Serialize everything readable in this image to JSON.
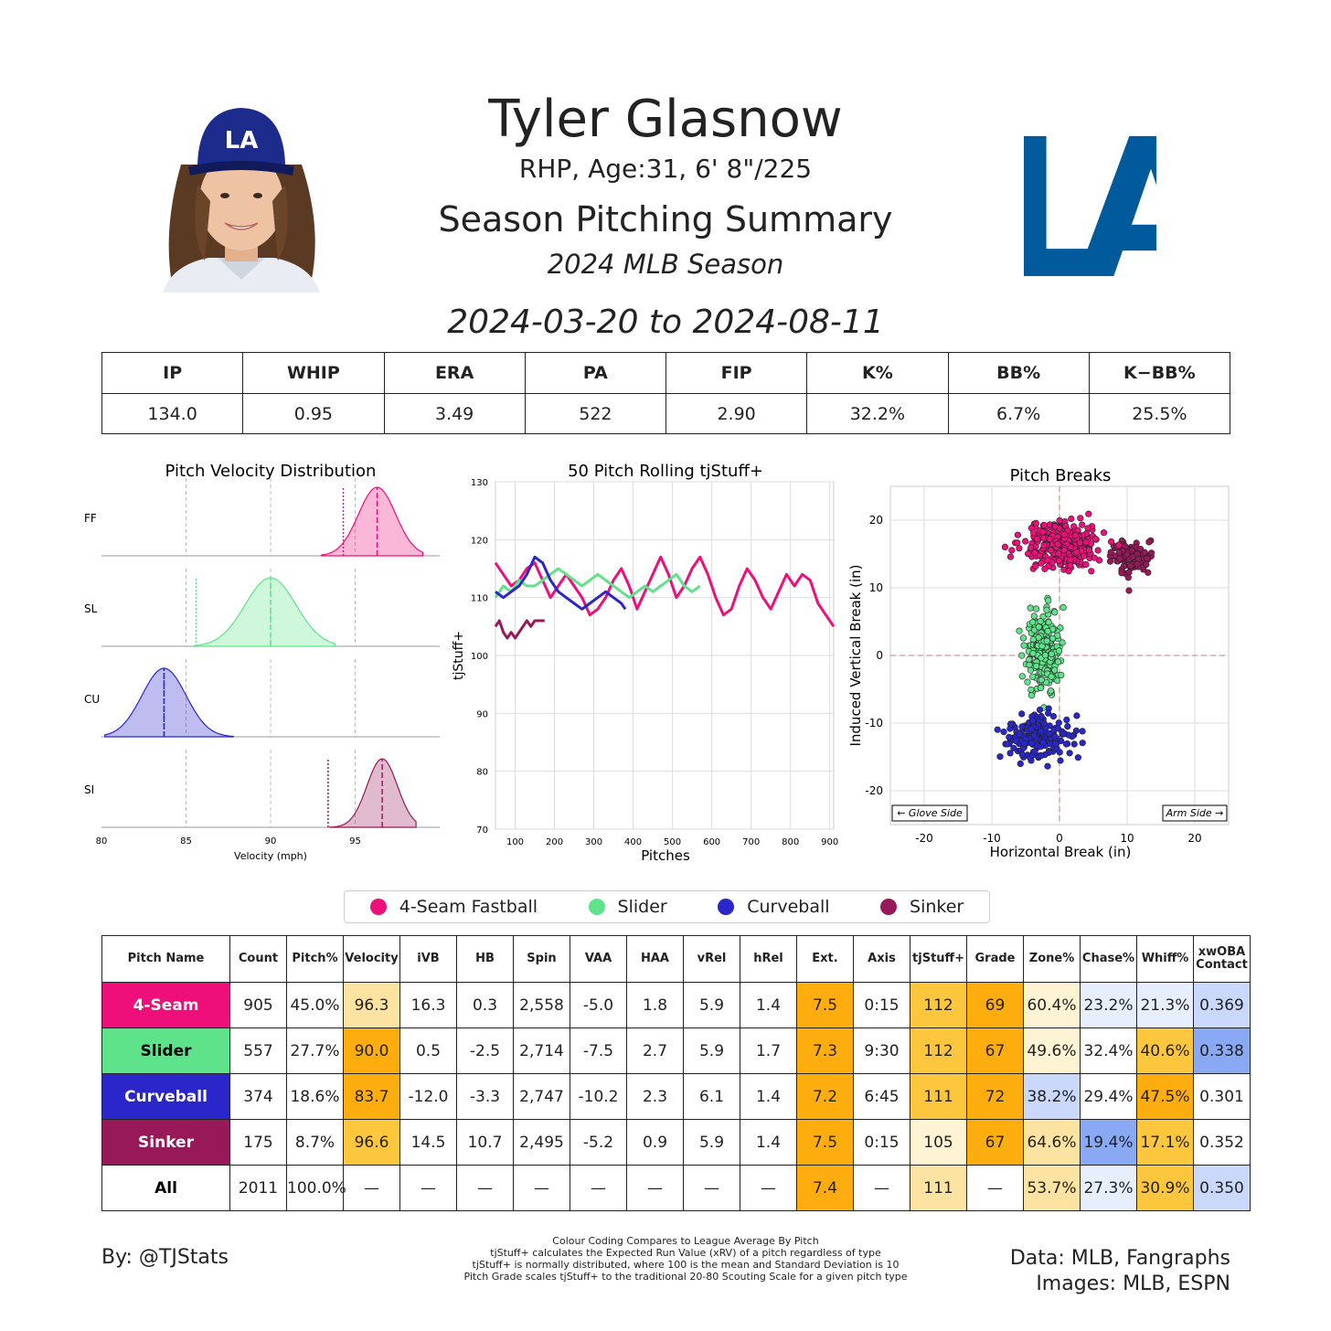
{
  "header": {
    "name": "Tyler Glasnow",
    "info": "RHP, Age:31, 6' 8\"/225",
    "title": "Season Pitching Summary",
    "season": "2024 MLB Season",
    "date_range": "2024-03-20 to 2024-08-11",
    "team_logo_text": "LA"
  },
  "season_stats": {
    "headers": [
      "IP",
      "WHIP",
      "ERA",
      "PA",
      "FIP",
      "K%",
      "BB%",
      "K−BB%"
    ],
    "values": [
      "134.0",
      "0.95",
      "3.49",
      "522",
      "2.90",
      "32.2%",
      "6.7%",
      "25.5%"
    ]
  },
  "colors": {
    "FF": "#ee0f7a",
    "SL": "#5fe38a",
    "CU": "#2a26c9",
    "SI": "#98195a",
    "orange_strong": "#fdae0e",
    "orange_mid": "#fdc73d",
    "orange_light": "#fde3a1",
    "orange_pale": "#fef3d3",
    "blue_strong": "#8aa9f5",
    "blue_mid": "#c9d8fb",
    "blue_light": "#e7eefd",
    "white": "#ffffff"
  },
  "chart_data": [
    {
      "type": "area",
      "title": "Pitch Velocity Distribution",
      "xlabel": "Velocity (mph)",
      "ylabel": "",
      "xlim": [
        80,
        100
      ],
      "xticks": [
        80,
        85,
        90,
        95
      ],
      "series": [
        {
          "label": "FF",
          "mean": 96.3,
          "sd": 1.1,
          "min": 93.0,
          "max": 99.0,
          "league_avg": 94.3
        },
        {
          "label": "SL",
          "mean": 90.0,
          "sd": 1.5,
          "min": 85.5,
          "max": 93.8,
          "league_avg": 85.6
        },
        {
          "label": "CU",
          "mean": 83.7,
          "sd": 1.3,
          "min": 80.2,
          "max": 87.8,
          "league_avg": 83.7
        },
        {
          "label": "SI",
          "mean": 96.6,
          "sd": 0.9,
          "min": 93.5,
          "max": 98.6,
          "league_avg": 93.4
        }
      ]
    },
    {
      "type": "line",
      "title": "50 Pitch Rolling tjStuff+",
      "xlabel": "Pitches",
      "ylabel": "tjStuff+",
      "xlim": [
        50,
        910
      ],
      "ylim": [
        70,
        130
      ],
      "xticks": [
        100,
        200,
        300,
        400,
        500,
        600,
        700,
        800,
        900
      ],
      "yticks": [
        70,
        80,
        90,
        100,
        110,
        120,
        130
      ],
      "series": [
        {
          "name": "FF",
          "points": [
            [
              50,
              116
            ],
            [
              70,
              114
            ],
            [
              90,
              112
            ],
            [
              110,
              113
            ],
            [
              130,
              115
            ],
            [
              150,
              116
            ],
            [
              170,
              113
            ],
            [
              190,
              110
            ],
            [
              210,
              112
            ],
            [
              230,
              114
            ],
            [
              250,
              112
            ],
            [
              270,
              110
            ],
            [
              290,
              107
            ],
            [
              310,
              108
            ],
            [
              330,
              110
            ],
            [
              350,
              113
            ],
            [
              370,
              115
            ],
            [
              390,
              112
            ],
            [
              410,
              108
            ],
            [
              430,
              111
            ],
            [
              450,
              114
            ],
            [
              470,
              117
            ],
            [
              490,
              114
            ],
            [
              510,
              110
            ],
            [
              530,
              112
            ],
            [
              550,
              115
            ],
            [
              570,
              117
            ],
            [
              590,
              114
            ],
            [
              610,
              110
            ],
            [
              630,
              107
            ],
            [
              650,
              108
            ],
            [
              670,
              112
            ],
            [
              690,
              115
            ],
            [
              710,
              113
            ],
            [
              730,
              110
            ],
            [
              750,
              108
            ],
            [
              770,
              111
            ],
            [
              790,
              114
            ],
            [
              810,
              112
            ],
            [
              830,
              114
            ],
            [
              850,
              113
            ],
            [
              870,
              109
            ],
            [
              890,
              107
            ],
            [
              910,
              105
            ]
          ]
        },
        {
          "name": "SL",
          "points": [
            [
              50,
              110
            ],
            [
              70,
              112
            ],
            [
              90,
              111
            ],
            [
              110,
              113
            ],
            [
              130,
              112
            ],
            [
              150,
              112
            ],
            [
              170,
              113
            ],
            [
              190,
              114
            ],
            [
              210,
              115
            ],
            [
              230,
              114
            ],
            [
              250,
              113
            ],
            [
              270,
              112
            ],
            [
              290,
              113
            ],
            [
              310,
              114
            ],
            [
              330,
              113
            ],
            [
              350,
              112
            ],
            [
              370,
              111
            ],
            [
              390,
              110
            ],
            [
              410,
              111
            ],
            [
              430,
              112
            ],
            [
              450,
              111
            ],
            [
              470,
              112
            ],
            [
              490,
              113
            ],
            [
              510,
              114
            ],
            [
              530,
              112
            ],
            [
              550,
              111
            ],
            [
              570,
              112
            ]
          ]
        },
        {
          "name": "CU",
          "points": [
            [
              50,
              111
            ],
            [
              70,
              110
            ],
            [
              90,
              111
            ],
            [
              110,
              112
            ],
            [
              130,
              114
            ],
            [
              150,
              117
            ],
            [
              170,
              116
            ],
            [
              190,
              113
            ],
            [
              210,
              111
            ],
            [
              230,
              110
            ],
            [
              250,
              109
            ],
            [
              270,
              108
            ],
            [
              290,
              109
            ],
            [
              310,
              110
            ],
            [
              330,
              111
            ],
            [
              350,
              110
            ],
            [
              370,
              109
            ],
            [
              380,
              108
            ]
          ]
        },
        {
          "name": "SI",
          "points": [
            [
              50,
              105
            ],
            [
              60,
              106
            ],
            [
              70,
              104
            ],
            [
              80,
              103
            ],
            [
              90,
              104
            ],
            [
              100,
              103
            ],
            [
              110,
              104
            ],
            [
              120,
              105
            ],
            [
              130,
              106
            ],
            [
              140,
              105
            ],
            [
              150,
              106
            ],
            [
              160,
              106
            ],
            [
              175,
              106
            ]
          ]
        }
      ]
    },
    {
      "type": "scatter",
      "title": "Pitch Breaks",
      "xlabel": "Horizontal Break (in)",
      "ylabel": "Induced Vertical Break (in)",
      "xlim": [
        -25,
        25
      ],
      "ylim": [
        -25,
        25
      ],
      "xticks": [
        -20,
        -10,
        0,
        10,
        20
      ],
      "yticks": [
        -20,
        -10,
        0,
        10,
        20
      ],
      "annotations": [
        "← Glove Side",
        "Arm Side →"
      ],
      "series": [
        {
          "name": "FF",
          "center": [
            0.3,
            16.3
          ],
          "spread": [
            3.2,
            2.0
          ],
          "count": 340
        },
        {
          "name": "SL",
          "center": [
            -2.5,
            0.5
          ],
          "spread": [
            1.5,
            4.0
          ],
          "count": 220
        },
        {
          "name": "CU",
          "center": [
            -3.3,
            -12.0
          ],
          "spread": [
            3.0,
            2.0
          ],
          "count": 200
        },
        {
          "name": "SI",
          "center": [
            10.7,
            14.5
          ],
          "spread": [
            1.9,
            1.4
          ],
          "count": 110
        }
      ]
    }
  ],
  "legend": [
    {
      "key": "FF",
      "label": "4-Seam Fastball"
    },
    {
      "key": "SL",
      "label": "Slider"
    },
    {
      "key": "CU",
      "label": "Curveball"
    },
    {
      "key": "SI",
      "label": "Sinker"
    }
  ],
  "pitch_table": {
    "headers": [
      "Pitch Name",
      "Count",
      "Pitch%",
      "Velocity",
      "iVB",
      "HB",
      "Spin",
      "VAA",
      "HAA",
      "vRel",
      "hRel",
      "Ext.",
      "Axis",
      "tjStuff+",
      "Grade",
      "Zone%",
      "Chase%",
      "Whiff%",
      "xwOBA Contact"
    ],
    "rows": [
      {
        "name": "4-Seam",
        "key": "FF",
        "text": "#ffffff",
        "cells": [
          "905",
          "45.0%",
          "96.3",
          "16.3",
          "0.3",
          "2,558",
          "-5.0",
          "1.8",
          "5.9",
          "1.4",
          "7.5",
          "0:15",
          "112",
          "69",
          "60.4%",
          "23.2%",
          "21.3%",
          "0.369"
        ],
        "shade": [
          "white",
          "white",
          "orange_light",
          "white",
          "white",
          "white",
          "white",
          "white",
          "white",
          "white",
          "orange_strong",
          "white",
          "orange_mid",
          "orange_strong",
          "orange_pale",
          "blue_light",
          "blue_light",
          "blue_mid"
        ]
      },
      {
        "name": "Slider",
        "key": "SL",
        "text": "#000000",
        "cells": [
          "557",
          "27.7%",
          "90.0",
          "0.5",
          "-2.5",
          "2,714",
          "-7.5",
          "2.7",
          "5.9",
          "1.7",
          "7.3",
          "9:30",
          "112",
          "67",
          "49.6%",
          "32.4%",
          "40.6%",
          "0.338"
        ],
        "shade": [
          "white",
          "white",
          "orange_strong",
          "white",
          "white",
          "white",
          "white",
          "white",
          "white",
          "white",
          "orange_strong",
          "white",
          "orange_mid",
          "orange_strong",
          "orange_pale",
          "white",
          "orange_mid",
          "blue_strong"
        ]
      },
      {
        "name": "Curveball",
        "key": "CU",
        "text": "#ffffff",
        "cells": [
          "374",
          "18.6%",
          "83.7",
          "-12.0",
          "-3.3",
          "2,747",
          "-10.2",
          "2.3",
          "6.1",
          "1.4",
          "7.2",
          "6:45",
          "111",
          "72",
          "38.2%",
          "29.4%",
          "47.5%",
          "0.301"
        ],
        "shade": [
          "white",
          "white",
          "orange_strong",
          "white",
          "white",
          "white",
          "white",
          "white",
          "white",
          "white",
          "orange_strong",
          "white",
          "orange_mid",
          "orange_strong",
          "blue_mid",
          "white",
          "orange_strong",
          "white"
        ]
      },
      {
        "name": "Sinker",
        "key": "SI",
        "text": "#ffffff",
        "cells": [
          "175",
          "8.7%",
          "96.6",
          "14.5",
          "10.7",
          "2,495",
          "-5.2",
          "0.9",
          "5.9",
          "1.4",
          "7.5",
          "0:15",
          "105",
          "67",
          "64.6%",
          "19.4%",
          "17.1%",
          "0.352"
        ],
        "shade": [
          "white",
          "white",
          "orange_mid",
          "white",
          "white",
          "white",
          "white",
          "white",
          "white",
          "white",
          "orange_strong",
          "white",
          "orange_pale",
          "orange_strong",
          "orange_light",
          "blue_strong",
          "orange_mid",
          "white"
        ]
      },
      {
        "name": "All",
        "key": "",
        "text": "#000000",
        "cells": [
          "2011",
          "100.0%",
          "—",
          "—",
          "—",
          "—",
          "—",
          "—",
          "—",
          "—",
          "7.4",
          "—",
          "111",
          "—",
          "53.7%",
          "27.3%",
          "30.9%",
          "0.350"
        ],
        "shade": [
          "white",
          "white",
          "white",
          "white",
          "white",
          "white",
          "white",
          "white",
          "white",
          "white",
          "orange_strong",
          "white",
          "orange_light",
          "white",
          "orange_light",
          "blue_light",
          "orange_mid",
          "blue_mid"
        ]
      }
    ]
  },
  "footer": {
    "left": "By: @TJStats",
    "right_line1": "Data: MLB, Fangraphs",
    "right_line2": "Images: MLB, ESPN",
    "notes": [
      "Colour Coding Compares to League Average By Pitch",
      "tjStuff+ calculates the Expected Run Value (xRV) of a pitch regardless of type",
      "tjStuff+ is normally distributed, where 100 is the mean and Standard Deviation is 10",
      "Pitch Grade scales tjStuff+ to the traditional 20-80 Scouting Scale for a given pitch type"
    ]
  }
}
